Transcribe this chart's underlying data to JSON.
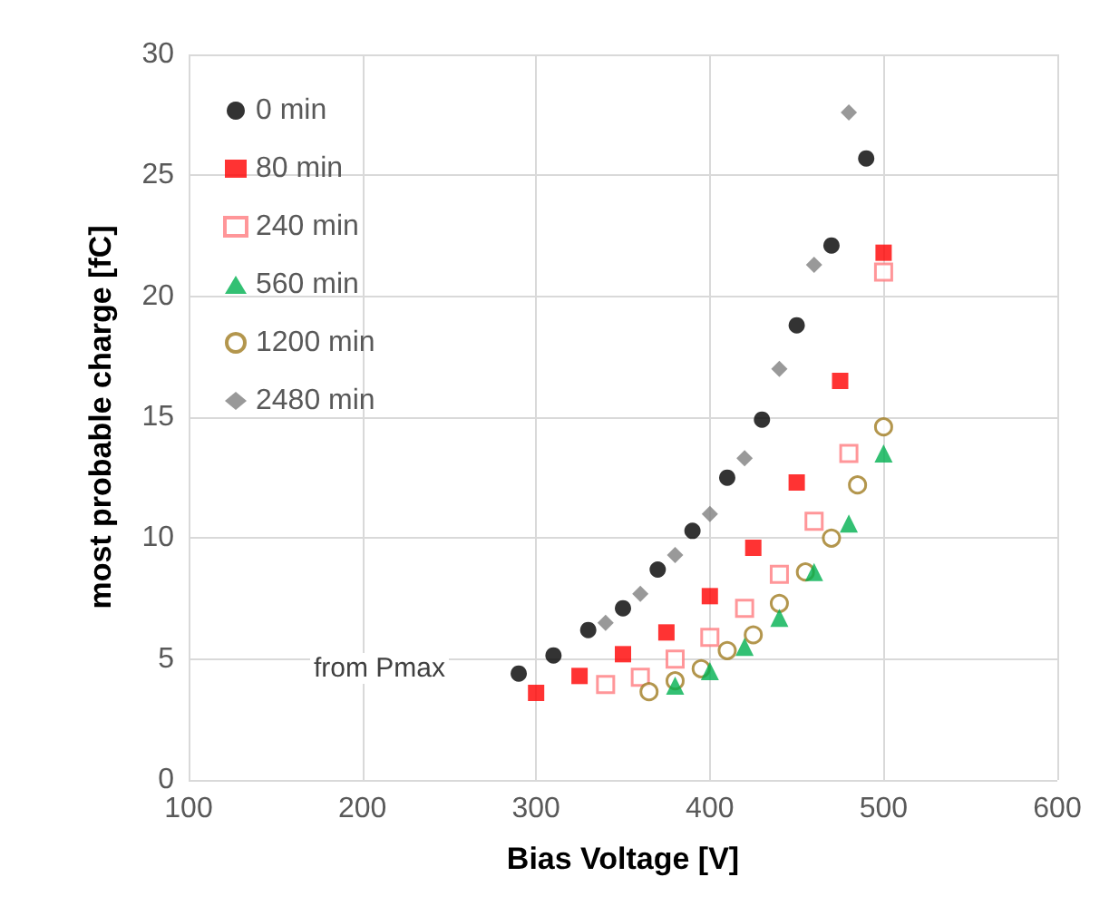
{
  "chart_data": {
    "type": "scatter",
    "xlabel": "Bias Voltage [V]",
    "ylabel": "most probable charge [fC]",
    "xlim": [
      100,
      600
    ],
    "xticks": [
      100,
      200,
      300,
      400,
      500,
      600
    ],
    "ylim": [
      0,
      30
    ],
    "yticks": [
      0,
      5,
      10,
      15,
      20,
      25,
      30
    ],
    "grid": true,
    "legend": "top left",
    "annotations": [
      "from Pmax"
    ],
    "series": [
      {
        "name": "0 min",
        "color": "#000000",
        "marker": "circle",
        "x": [
          290,
          310,
          330,
          350,
          370,
          390,
          410,
          430,
          450,
          470,
          490
        ],
        "values": [
          4.4,
          5.15,
          6.2,
          7.1,
          8.7,
          10.3,
          12.5,
          14.9,
          18.8,
          22.1,
          25.7
        ]
      },
      {
        "name": "80 min",
        "color": "#ff0000",
        "marker": "square",
        "x": [
          300,
          325,
          350,
          375,
          400,
          425,
          450,
          475,
          500
        ],
        "values": [
          3.6,
          4.3,
          5.2,
          6.1,
          7.6,
          9.6,
          12.3,
          16.5,
          21.8
        ]
      },
      {
        "name": "240 min",
        "color": "#ff7c80",
        "marker": "square-open",
        "x": [
          340,
          360,
          380,
          400,
          420,
          440,
          460,
          480,
          500
        ],
        "values": [
          3.95,
          4.25,
          5.0,
          5.9,
          7.1,
          8.5,
          10.7,
          13.5,
          21.0
        ]
      },
      {
        "name": "560 min",
        "color": "#00b050",
        "marker": "triangle",
        "x": [
          380,
          400,
          420,
          440,
          460,
          480,
          500
        ],
        "values": [
          3.9,
          4.5,
          5.5,
          6.7,
          8.6,
          10.6,
          13.5
        ]
      },
      {
        "name": "1200 min",
        "color": "#a07c20",
        "marker": "circle-open",
        "x": [
          365,
          380,
          395,
          410,
          425,
          440,
          455,
          470,
          485,
          500
        ],
        "values": [
          3.65,
          4.1,
          4.6,
          5.35,
          6.0,
          7.3,
          8.6,
          10.0,
          12.2,
          14.6
        ]
      },
      {
        "name": "2480 min",
        "color": "#808080",
        "marker": "diamond",
        "x": [
          340,
          360,
          380,
          400,
          420,
          440,
          460,
          480
        ],
        "values": [
          6.5,
          7.7,
          9.3,
          11.0,
          13.3,
          17.0,
          21.3,
          27.6
        ]
      }
    ]
  }
}
